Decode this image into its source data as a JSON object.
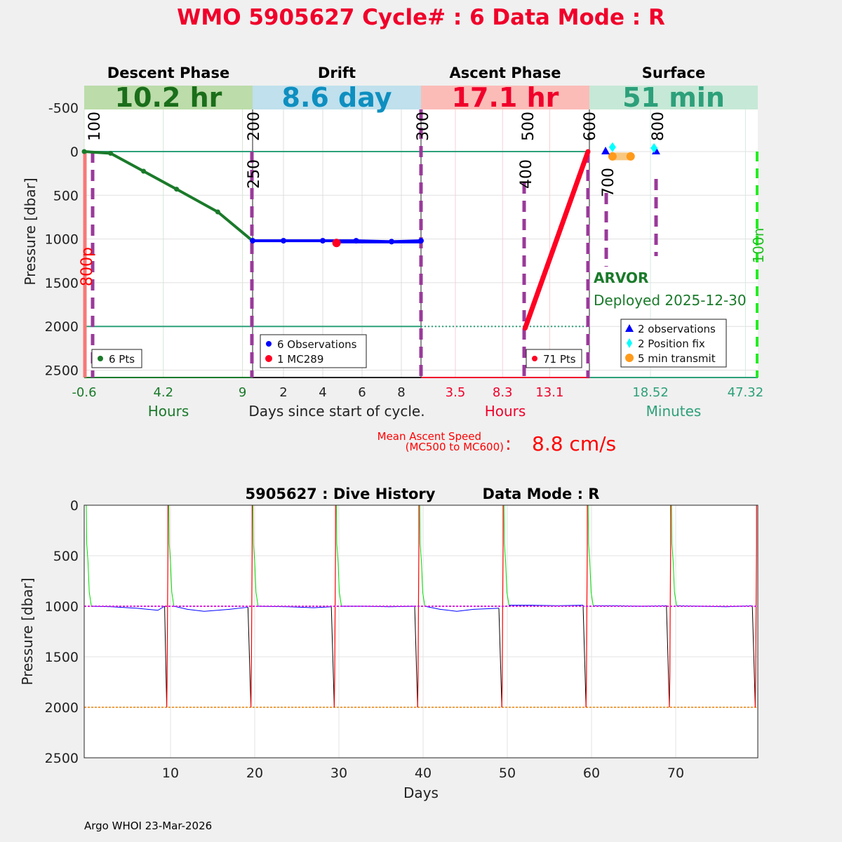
{
  "title": "WMO 5905627   Cycle# : 6   Data Mode : R",
  "chart_data": [
    {
      "type": "line",
      "name": "cycle-profile",
      "ylabel": "Pressure [dbar]",
      "ylim": [
        -760,
        2590
      ],
      "yticks": [
        "-500",
        "0",
        "500",
        "1000",
        "1500",
        "2000",
        "2500"
      ],
      "ytick_values": [
        -500,
        0,
        500,
        1000,
        1500,
        2000,
        2500
      ],
      "center_xlabel": "Days since start of cycle.",
      "phases": [
        {
          "name": "Descent Phase",
          "duration": "10.2 hr",
          "band_color": "#bcdcaa",
          "text_color": "#1a6e1a",
          "unit_label": "Hours",
          "unit_color": "#1a7a2a",
          "xlim": [
            -0.6,
            9.6
          ],
          "ticks": [
            "-0.6",
            "4.2",
            "9"
          ],
          "tick_values": [
            -0.6,
            4.2,
            9
          ]
        },
        {
          "name": "Drift",
          "duration": "8.6 day",
          "band_color": "#bfe0ec",
          "text_color": "#0e8fc0",
          "unit_label": "",
          "unit_color": "#222222",
          "xlim": [
            0.43,
            9.0
          ],
          "ticks": [
            "2",
            "4",
            "6",
            "8"
          ],
          "tick_values": [
            2,
            4,
            6,
            8
          ]
        },
        {
          "name": "Ascent Phase",
          "duration": "17.1 hr",
          "band_color": "#fbbcb8",
          "text_color": "#f0002a",
          "unit_label": "Hours",
          "unit_color": "#f0002a",
          "xlim": [
            0,
            17.1
          ],
          "ticks": [
            "3.5",
            "8.3",
            "13.1"
          ],
          "tick_values": [
            3.5,
            8.3,
            13.1
          ]
        },
        {
          "name": "Surface",
          "duration": "51 min",
          "band_color": "#c6e8d6",
          "text_color": "#2ca07a",
          "unit_label": "Minutes",
          "unit_color": "#2ca07a",
          "xlim": [
            0,
            51
          ],
          "ticks": [
            "18.52",
            "47.32"
          ],
          "tick_values": [
            18.52,
            47.32
          ]
        }
      ],
      "descent": {
        "x_hours": [
          -0.6,
          1.0,
          3.0,
          5.0,
          7.5,
          9.6
        ],
        "p": [
          0,
          20,
          225,
          430,
          690,
          1020
        ],
        "legend": "6 Pts",
        "color": "#1a7a2a"
      },
      "drift": {
        "observations": {
          "x_days": [
            0.43,
            2.0,
            4.0,
            5.7,
            7.5,
            9.0
          ],
          "p": [
            1020,
            1020,
            1020,
            1020,
            1030,
            1020
          ],
          "legend": "6 Observations",
          "color": "#0000ff"
        },
        "band": {
          "x_days": [
            4.7,
            9.0
          ],
          "p": [
            1020,
            1050
          ]
        },
        "mc289": {
          "x_days": 4.7,
          "p": 1045,
          "legend": "1 MC289",
          "color": "#ff0022"
        }
      },
      "ascent": {
        "x_hours": [
          10.6,
          17.0
        ],
        "p": [
          2020,
          0
        ],
        "legend": "71 Pts",
        "color": "#ff0022"
      },
      "surface": {
        "observations": {
          "x_min": [
            4.9,
            20.2
          ],
          "p": [
            0,
            0
          ],
          "legend": "2 observations",
          "color": "#0000ff"
        },
        "position_fix": {
          "x_min": [
            7.0,
            19.6
          ],
          "p": [
            -50,
            -40
          ],
          "legend": "2 Position fix",
          "color": "#00ffff"
        },
        "transmit": {
          "x_min": [
            7.0,
            12.5
          ],
          "p": [
            55,
            55
          ],
          "legend": "5 min transmit",
          "color": "#ff9a1a"
        }
      },
      "float_type": "ARVOR",
      "deployed": "Deployed 2025-12-30",
      "left_marker": "800p",
      "right_marker": "100n",
      "mission_codes": [
        "100",
        "200",
        "250",
        "300",
        "400",
        "500",
        "600",
        "700",
        "800"
      ],
      "mean_ascent": {
        "label1": "Mean Ascent Speed",
        "label2": "(MC500 to MC600)",
        "colon": ":",
        "value": "8.8 cm/s"
      }
    },
    {
      "type": "line",
      "name": "dive-history",
      "title_left": "5905627 : Dive History",
      "title_right": "Data Mode : R",
      "xlabel": "Days",
      "ylabel": "Pressure [dbar]",
      "xlim": [
        -0.25,
        79.75
      ],
      "ylim": [
        0,
        2500
      ],
      "xticks": [
        "10",
        "20",
        "30",
        "40",
        "50",
        "60",
        "70"
      ],
      "xtick_values": [
        10,
        20,
        30,
        40,
        50,
        60,
        70
      ],
      "yticks": [
        "0",
        "500",
        "1000",
        "1500",
        "2000",
        "2500"
      ],
      "ytick_values": [
        0,
        500,
        1000,
        1500,
        2000,
        2500
      ],
      "park_pressure": 1000,
      "profile_pressure": 2000,
      "dives": [
        {
          "start": 0.0,
          "drift": [
            [
              0.6,
              1000
            ],
            [
              3,
              1005
            ],
            [
              6,
              1020
            ],
            [
              8.5,
              1040
            ],
            [
              9.3,
              1000
            ]
          ],
          "ascent": 9.7
        },
        {
          "start": 9.8,
          "drift": [
            [
              10.4,
              1000
            ],
            [
              12,
              1030
            ],
            [
              14,
              1050
            ],
            [
              17,
              1030
            ],
            [
              19.2,
              1010
            ]
          ],
          "ascent": 19.7
        },
        {
          "start": 19.8,
          "drift": [
            [
              20.4,
              1000
            ],
            [
              24,
              1005
            ],
            [
              27,
              1015
            ],
            [
              29.1,
              1005
            ]
          ],
          "ascent": 29.6
        },
        {
          "start": 29.7,
          "drift": [
            [
              30.3,
              1000
            ],
            [
              33,
              1000
            ],
            [
              36,
              1005
            ],
            [
              39.0,
              1000
            ]
          ],
          "ascent": 39.5
        },
        {
          "start": 39.6,
          "drift": [
            [
              40.2,
              1000
            ],
            [
              42,
              1030
            ],
            [
              44,
              1050
            ],
            [
              46,
              1030
            ],
            [
              49.0,
              1020
            ]
          ],
          "ascent": 49.5
        },
        {
          "start": 49.6,
          "drift": [
            [
              50.2,
              990
            ],
            [
              53,
              990
            ],
            [
              56,
              995
            ],
            [
              59.0,
              990
            ]
          ],
          "ascent": 59.5
        },
        {
          "start": 59.6,
          "drift": [
            [
              60.2,
              995
            ],
            [
              63,
              995
            ],
            [
              66,
              1000
            ],
            [
              68.9,
              995
            ]
          ],
          "ascent": 69.4
        },
        {
          "start": 69.5,
          "drift": [
            [
              70.1,
              995
            ],
            [
              73,
              1000
            ],
            [
              76,
              1005
            ],
            [
              79.1,
              995
            ]
          ],
          "ascent": 79.6
        }
      ]
    }
  ],
  "footer": "Argo WHOI 23-Mar-2026"
}
